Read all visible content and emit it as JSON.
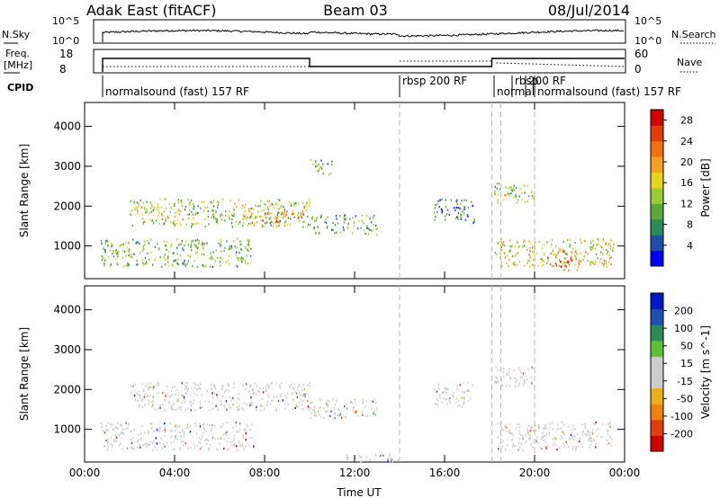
{
  "header": {
    "station": "Adak East (fitACF)",
    "beam": "Beam 03",
    "date": "08/Jul/2014"
  },
  "top_panels": {
    "nsky_label": "N.Sky",
    "nsky_ticks": [
      "10^5",
      "10^0"
    ],
    "nsearch_label": "N.Search",
    "nsearch_ticks": [
      "10^5",
      "10^0"
    ],
    "freq_label": "Freq.",
    "freq_unit": "[MHz]",
    "freq_ticks": [
      "18",
      "8"
    ],
    "nave_label": "Nave",
    "nave_ticks": [
      "60",
      "0"
    ],
    "cpid_label": "CPID"
  },
  "cpid_segments": [
    {
      "label": "normalsound (fast)  157 RF",
      "start_h": 0.8
    },
    {
      "label": "rbsp  200 RF",
      "start_h": 14.0
    },
    {
      "label": "normal",
      "start_h": 18.2
    },
    {
      "label": "rbsp",
      "start_h": 19.0
    },
    {
      "label": "200 RF",
      "start_h": 19.6
    },
    {
      "label": "normalsound (fast)  157 RF",
      "start_h": 20.0
    }
  ],
  "colors": {
    "power_scale": [
      "#0000ff",
      "#1f4fa8",
      "#2e8b57",
      "#5aa83c",
      "#99cc33",
      "#e8d21c",
      "#f5a020",
      "#f07010",
      "#e03c0c",
      "#d00000"
    ],
    "velocity_scale": [
      "#0018c8",
      "#1f4faf",
      "#2e8b57",
      "#5fbf3a",
      "#cccccc",
      "#cccccc",
      "#e8b020",
      "#f08010",
      "#e04010",
      "#d00000"
    ]
  },
  "chart_data": [
    {
      "type": "heatmap",
      "title": "Power",
      "xlabel": "",
      "ylabel": "Slant Range [km]",
      "x_ticks": [
        "00:00",
        "04:00",
        "08:00",
        "12:00",
        "16:00",
        "20:00",
        "00:00"
      ],
      "y_ticks": [
        "1000",
        "2000",
        "3000",
        "4000"
      ],
      "xlim": [
        0,
        24
      ],
      "ylim": [
        180,
        4600
      ],
      "colorbar_label": "Power [dB]",
      "colorbar_ticks": [
        "4",
        "8",
        "12",
        "16",
        "20",
        "24",
        "28"
      ],
      "colorbar_range": [
        0,
        30
      ],
      "regions": [
        {
          "t0": 0.7,
          "t1": 7.5,
          "r0": 500,
          "r1": 1200,
          "level": 10
        },
        {
          "t0": 2.0,
          "t1": 10.0,
          "r0": 1500,
          "r1": 2200,
          "level": 12
        },
        {
          "t0": 7.0,
          "t1": 9.8,
          "r0": 1600,
          "r1": 1900,
          "level": 20
        },
        {
          "t0": 10.0,
          "t1": 13.0,
          "r0": 1300,
          "r1": 1800,
          "level": 8
        },
        {
          "t0": 10.0,
          "t1": 11.0,
          "r0": 2800,
          "r1": 3200,
          "level": 9
        },
        {
          "t0": 15.5,
          "t1": 17.3,
          "r0": 1600,
          "r1": 2200,
          "level": 5
        },
        {
          "t0": 18.2,
          "t1": 20.0,
          "r0": 2100,
          "r1": 2600,
          "level": 12
        },
        {
          "t0": 18.2,
          "t1": 23.5,
          "r0": 500,
          "r1": 1200,
          "level": 14
        },
        {
          "t0": 20.5,
          "t1": 22.0,
          "r0": 400,
          "r1": 900,
          "level": 22
        }
      ]
    },
    {
      "type": "heatmap",
      "title": "Velocity",
      "xlabel": "Time UT",
      "ylabel": "Slant Range [km]",
      "x_ticks": [
        "00:00",
        "04:00",
        "08:00",
        "12:00",
        "16:00",
        "20:00",
        "00:00"
      ],
      "y_ticks": [
        "1000",
        "2000",
        "3000",
        "4000"
      ],
      "xlim": [
        0,
        24
      ],
      "ylim": [
        180,
        4600
      ],
      "colorbar_label": "Velocity [m s^-1]",
      "colorbar_ticks": [
        "200",
        "100",
        "50",
        "15",
        "-15",
        "-50",
        "-100",
        "-200"
      ],
      "regions": [
        {
          "t0": 0.7,
          "t1": 7.5,
          "r0": 500,
          "r1": 1200,
          "level": 0
        },
        {
          "t0": 2.0,
          "t1": 10.0,
          "r0": 1500,
          "r1": 2200,
          "level": 0
        },
        {
          "t0": 10.0,
          "t1": 13.0,
          "r0": 1300,
          "r1": 1800,
          "level": 0
        },
        {
          "t0": 15.5,
          "t1": 17.3,
          "r0": 1600,
          "r1": 2200,
          "level": 0
        },
        {
          "t0": 18.2,
          "t1": 20.0,
          "r0": 2100,
          "r1": 2600,
          "level": 0
        },
        {
          "t0": 18.2,
          "t1": 23.5,
          "r0": 500,
          "r1": 1200,
          "level": 0
        },
        {
          "t0": 11.5,
          "t1": 14.0,
          "r0": 180,
          "r1": 400,
          "level": 60
        }
      ]
    }
  ]
}
